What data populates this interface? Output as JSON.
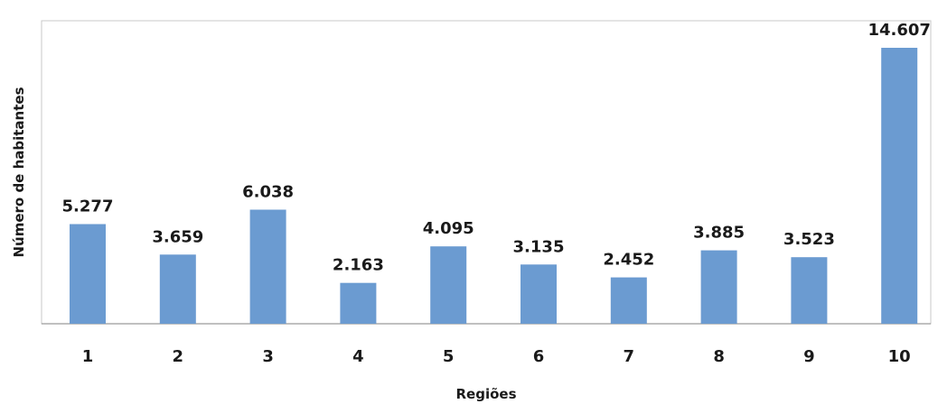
{
  "chart_data": {
    "type": "bar",
    "categories": [
      "1",
      "2",
      "3",
      "4",
      "5",
      "6",
      "7",
      "8",
      "9",
      "10"
    ],
    "values": [
      5277,
      3659,
      6038,
      2163,
      4095,
      3135,
      2452,
      3885,
      3523,
      14607
    ],
    "value_labels": [
      "5.277",
      "3.659",
      "6.038",
      "2.163",
      "4.095",
      "3.135",
      "2.452",
      "3.885",
      "3.523",
      "14.607"
    ],
    "xlabel": "Regiões",
    "ylabel": "Número de habitantes",
    "ylim": [
      0,
      14607
    ],
    "grid": false,
    "bar_color": "#6b9bd1"
  }
}
